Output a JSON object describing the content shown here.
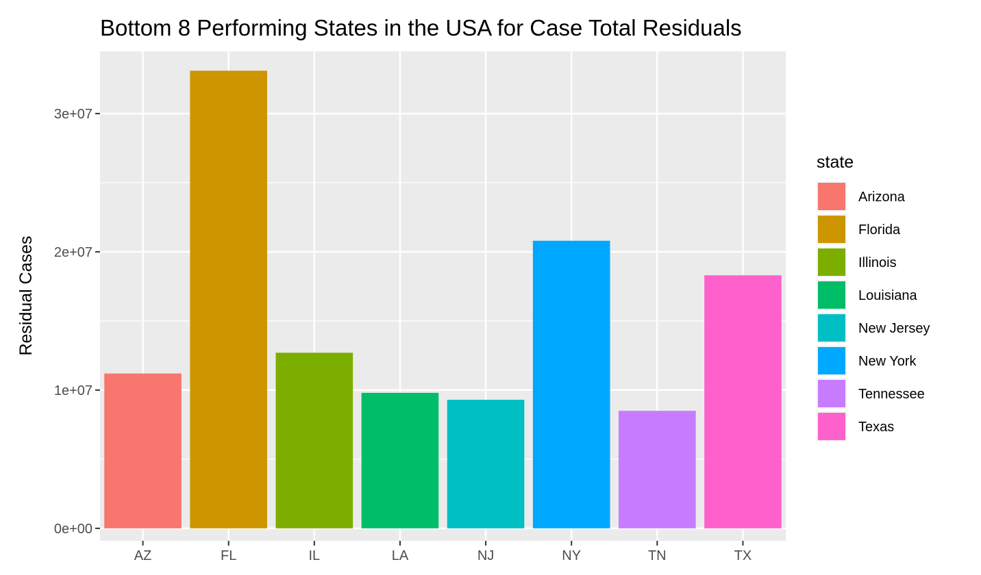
{
  "chart_data": {
    "type": "bar",
    "title": "Bottom 8 Performing States in the USA for Case Total Residuals",
    "xlabel": "",
    "ylabel": "Residual Cases",
    "categories": [
      "AZ",
      "FL",
      "IL",
      "LA",
      "NJ",
      "NY",
      "TN",
      "TX"
    ],
    "values": [
      11200000,
      33100000,
      12700000,
      9800000,
      9300000,
      20800000,
      8500000,
      18300000
    ],
    "colors": [
      "#F8766D",
      "#CD9600",
      "#7CAE00",
      "#00BE67",
      "#00BFC4",
      "#00A9FF",
      "#C77CFF",
      "#FF61CC"
    ],
    "ylim": [
      -900000,
      34500000
    ],
    "y_ticks": [
      0,
      10000000,
      20000000,
      30000000
    ],
    "y_tick_labels": [
      "0e+00",
      "1e+07",
      "2e+07",
      "3e+07"
    ],
    "grid": true,
    "legend": {
      "title": "state",
      "position": "right",
      "entries": [
        "Arizona",
        "Florida",
        "Illinois",
        "Louisiana",
        "New Jersey",
        "New York",
        "Tennessee",
        "Texas"
      ]
    }
  }
}
